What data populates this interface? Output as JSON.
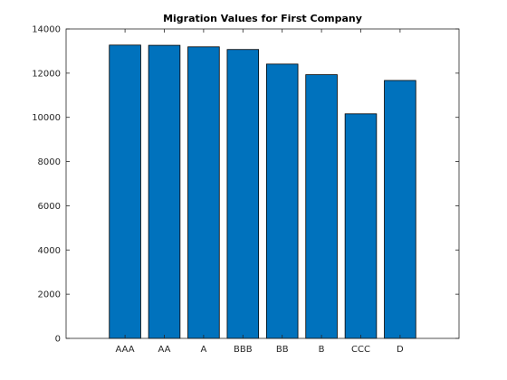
{
  "chart_data": {
    "type": "bar",
    "title": "Migration Values for First Company",
    "xlabel": "",
    "ylabel": "",
    "categories": [
      "AAA",
      "AA",
      "A",
      "BBB",
      "BB",
      "B",
      "CCC",
      "D"
    ],
    "values": [
      13270,
      13260,
      13190,
      13070,
      12410,
      11930,
      10160,
      11670
    ],
    "ylim": [
      0,
      14000
    ],
    "yticks": [
      0,
      2000,
      4000,
      6000,
      8000,
      10000,
      12000,
      14000
    ],
    "bar_color": "#0072BD",
    "grid": false,
    "legend": "none"
  }
}
